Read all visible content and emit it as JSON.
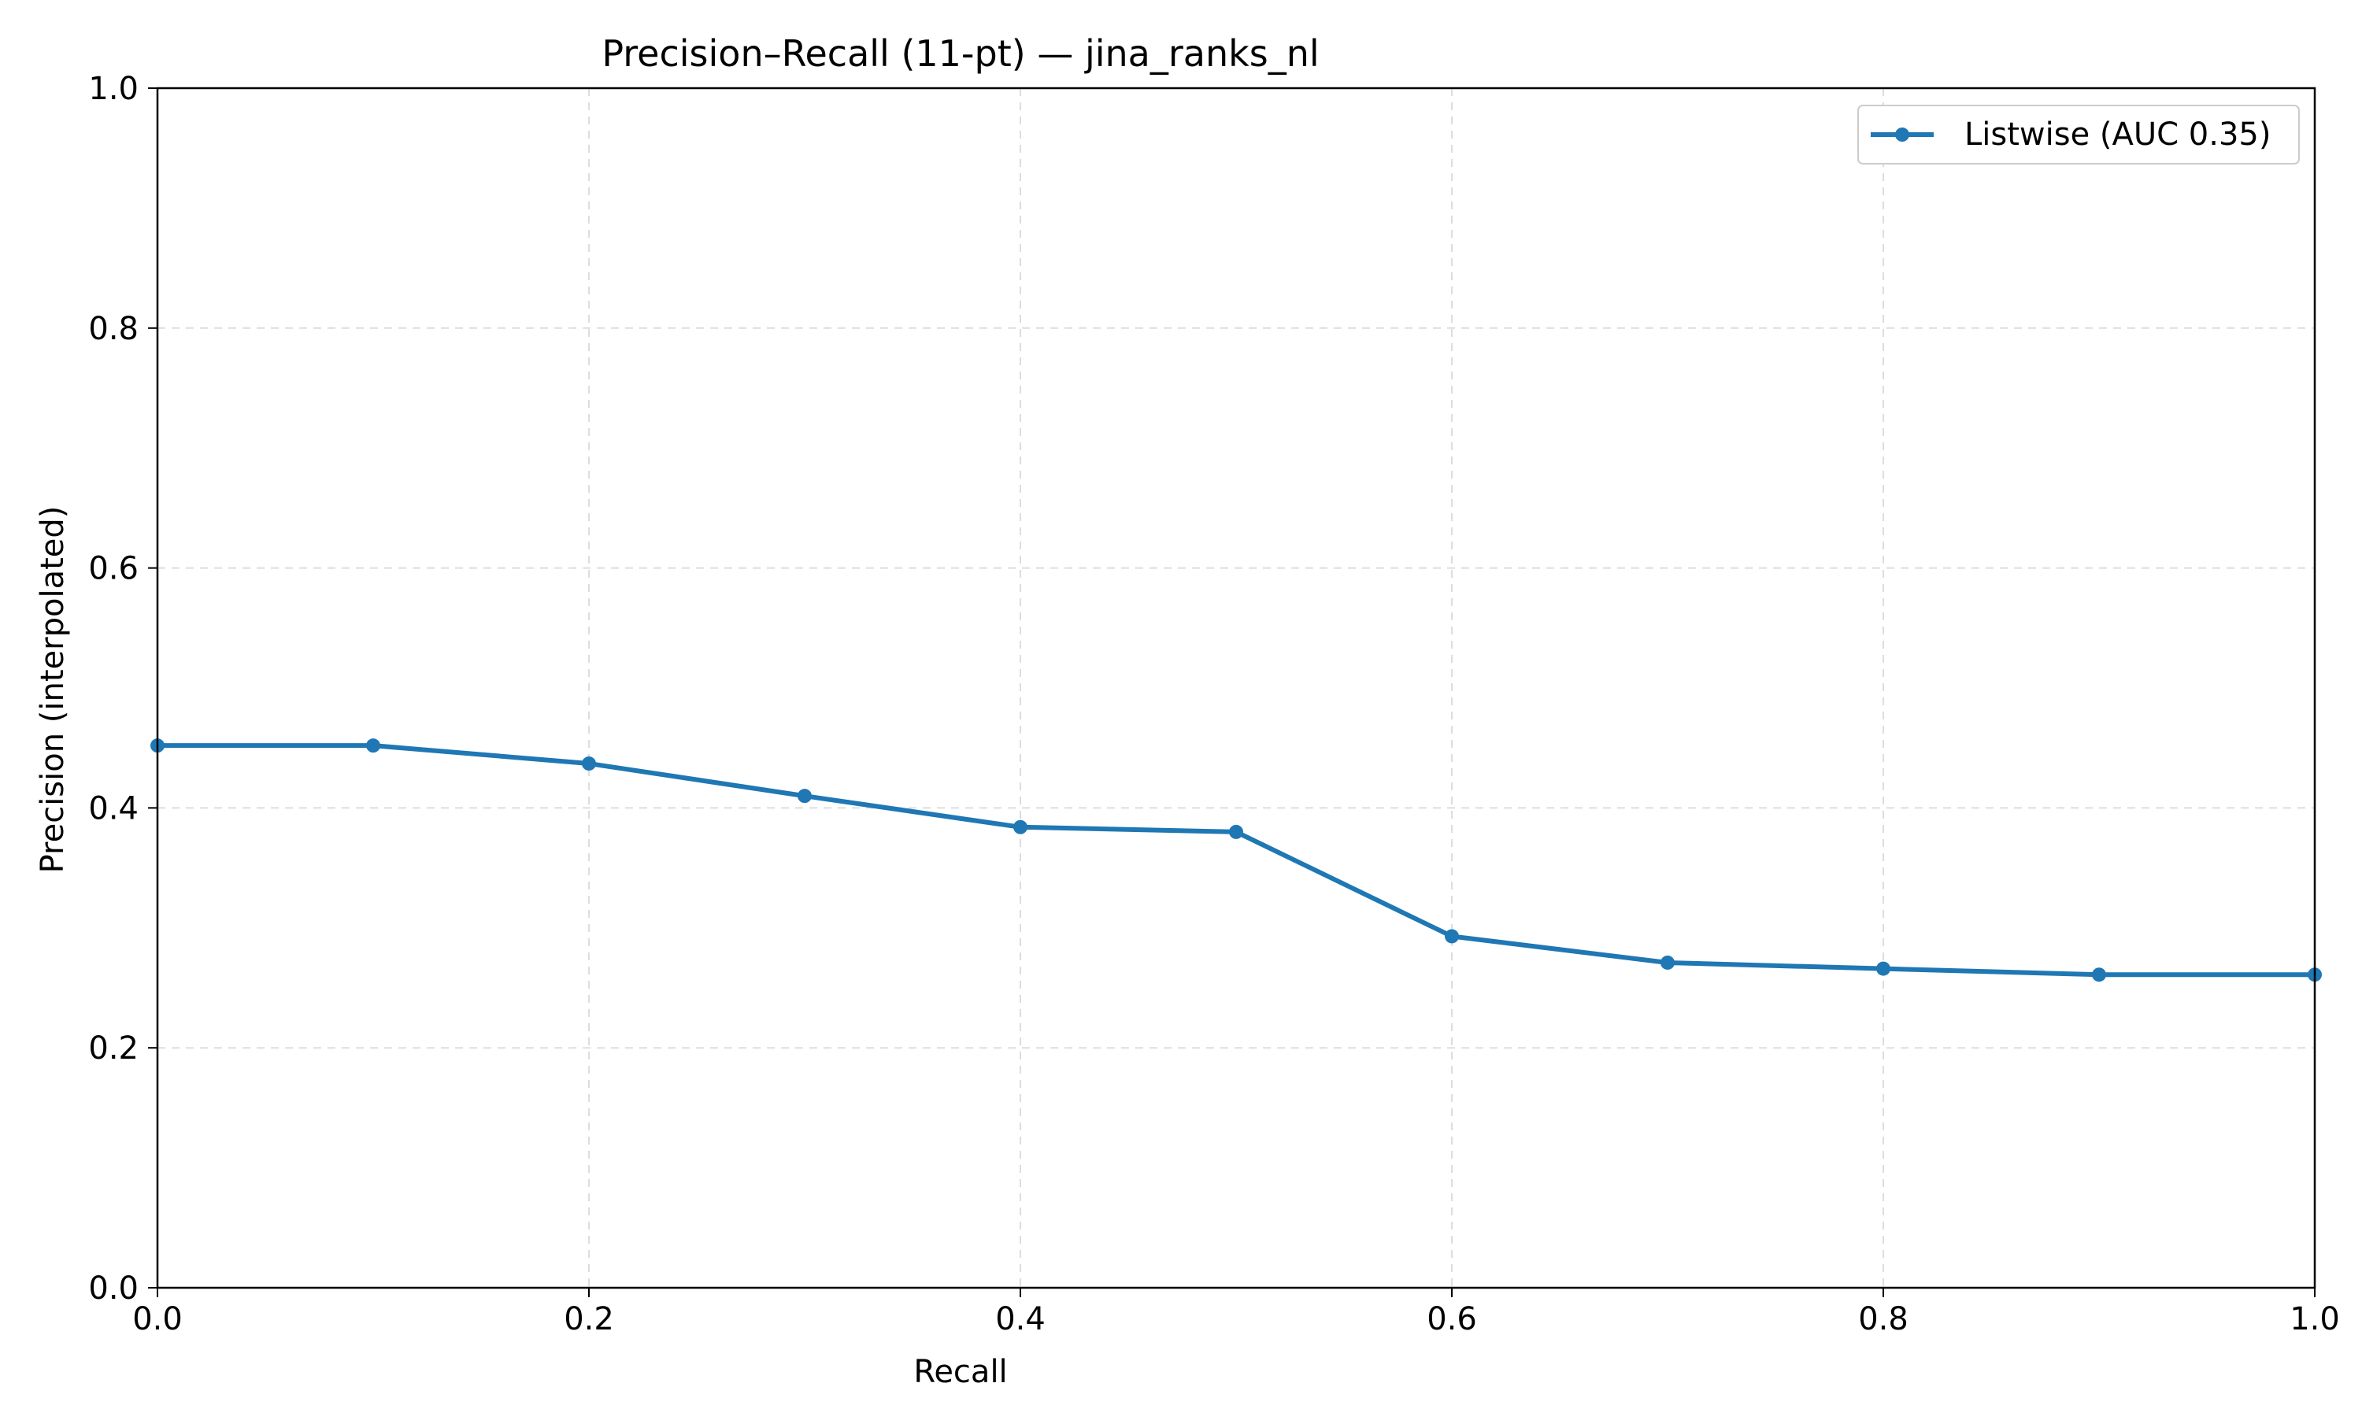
{
  "chart_data": {
    "type": "line",
    "title": "Precision–Recall (11-pt) — jina_ranks_nl",
    "xlabel": "Recall",
    "ylabel": "Precision (interpolated)",
    "xlim": [
      0.0,
      1.0
    ],
    "ylim": [
      0.0,
      1.0
    ],
    "xticks": [
      "0.0",
      "0.2",
      "0.4",
      "0.6",
      "0.8",
      "1.0"
    ],
    "yticks": [
      "0.0",
      "0.2",
      "0.4",
      "0.6",
      "0.8",
      "1.0"
    ],
    "grid": true,
    "legend_position": "top-right",
    "series": [
      {
        "name": "Listwise (AUC 0.35)",
        "color": "#1f77b4",
        "x": [
          0.0,
          0.1,
          0.2,
          0.3,
          0.4,
          0.5,
          0.6,
          0.7,
          0.8,
          0.9,
          1.0
        ],
        "y": [
          0.452,
          0.452,
          0.437,
          0.41,
          0.384,
          0.38,
          0.293,
          0.271,
          0.266,
          0.261,
          0.261
        ]
      }
    ]
  }
}
